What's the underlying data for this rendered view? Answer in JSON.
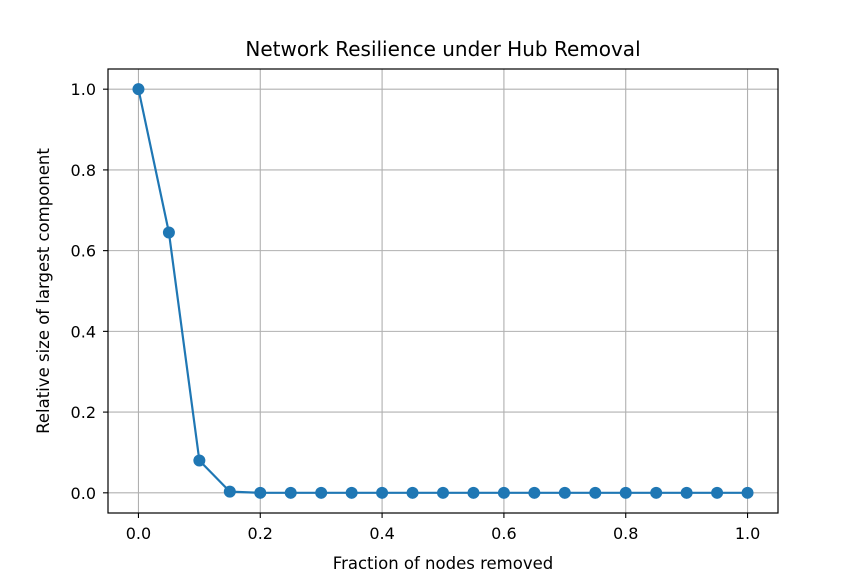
{
  "chart_data": {
    "type": "line",
    "title": "Network Resilience under Hub Removal",
    "xlabel": "Fraction of nodes removed",
    "ylabel": "Relative size of largest component",
    "xlim": [
      -0.05,
      1.05
    ],
    "ylim": [
      -0.05,
      1.05
    ],
    "xticks": [
      "0.0",
      "0.2",
      "0.4",
      "0.6",
      "0.8",
      "1.0"
    ],
    "yticks": [
      "0.0",
      "0.2",
      "0.4",
      "0.6",
      "0.8",
      "1.0"
    ],
    "grid": true,
    "color": "#1f77b4",
    "x": [
      0.0,
      0.05,
      0.1,
      0.15,
      0.2,
      0.25,
      0.3,
      0.35,
      0.4,
      0.45,
      0.5,
      0.55,
      0.6,
      0.65,
      0.7,
      0.75,
      0.8,
      0.85,
      0.9,
      0.95,
      1.0
    ],
    "y": [
      1.0,
      0.645,
      0.08,
      0.003,
      0.0,
      0.0,
      0.0,
      0.0,
      0.0,
      0.0,
      0.0,
      0.0,
      0.0,
      0.0,
      0.0,
      0.0,
      0.0,
      0.0,
      0.0,
      0.0,
      0.0
    ]
  }
}
